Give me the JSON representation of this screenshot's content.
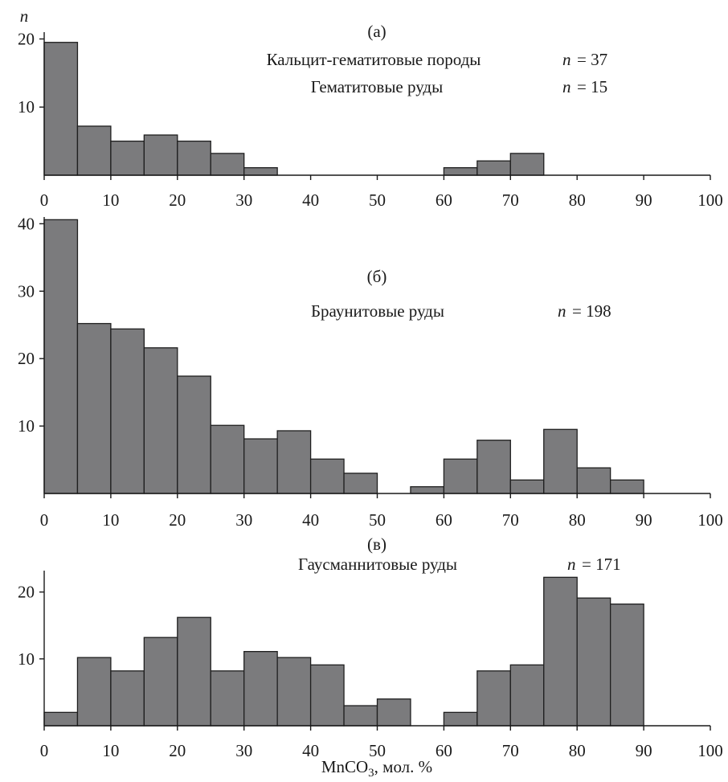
{
  "chart_data": [
    {
      "type": "bar",
      "panel_label": "(a)",
      "ylabel": "n",
      "bin_edges": [
        0,
        5,
        10,
        15,
        20,
        25,
        30,
        35,
        40,
        45,
        50,
        55,
        60,
        65,
        70,
        75,
        80,
        85,
        90,
        95,
        100
      ],
      "values": [
        19.5,
        7.2,
        5,
        5.9,
        5,
        3.2,
        1.1,
        0,
        0,
        0,
        0,
        0,
        1.1,
        2.1,
        3.2,
        0,
        0,
        0,
        0,
        0
      ],
      "xlim": [
        0,
        100
      ],
      "ylim": [
        0,
        21
      ],
      "x_ticks": [
        "0",
        "10",
        "20",
        "30",
        "40",
        "50",
        "60",
        "70",
        "80",
        "90",
        "100"
      ],
      "y_ticks": [
        "10",
        "20"
      ],
      "legend": [
        {
          "name": "Кальцит-гематитовые породы",
          "n_label": "n",
          "n_value": "= 37"
        },
        {
          "name": "Гематитовые руды",
          "n_label": "n",
          "n_value": "= 15"
        }
      ]
    },
    {
      "type": "bar",
      "panel_label": "(б)",
      "bin_edges": [
        0,
        5,
        10,
        15,
        20,
        25,
        30,
        35,
        40,
        45,
        50,
        55,
        60,
        65,
        70,
        75,
        80,
        85,
        90,
        95,
        100
      ],
      "values": [
        40.6,
        25.2,
        24.4,
        21.6,
        17.4,
        10.1,
        8.1,
        9.3,
        5.1,
        3,
        0,
        1,
        5.1,
        7.9,
        2,
        9.5,
        3.8,
        2,
        0,
        0
      ],
      "xlim": [
        0,
        100
      ],
      "ylim": [
        0,
        41
      ],
      "x_ticks": [
        "0",
        "10",
        "20",
        "30",
        "40",
        "50",
        "60",
        "70",
        "80",
        "90",
        "100"
      ],
      "y_ticks": [
        "10",
        "20",
        "30",
        "40"
      ],
      "legend": [
        {
          "name": "Браунитовые руды",
          "n_label": "n",
          "n_value": "= 198"
        }
      ]
    },
    {
      "type": "bar",
      "panel_label": "(в)",
      "xlabel": "MnCO",
      "xlabel_sub": "3",
      "xlabel_tail": ", мол. %",
      "bin_edges": [
        0,
        5,
        10,
        15,
        20,
        25,
        30,
        35,
        40,
        45,
        50,
        55,
        60,
        65,
        70,
        75,
        80,
        85,
        90,
        95,
        100
      ],
      "values": [
        2,
        10.2,
        8.2,
        13.2,
        16.2,
        8.2,
        11.1,
        10.2,
        9.1,
        3,
        4,
        0,
        2,
        8.2,
        9.1,
        22.2,
        19.1,
        18.2,
        0,
        0
      ],
      "xlim": [
        0,
        100
      ],
      "ylim": [
        0,
        23.2
      ],
      "x_ticks": [
        "0",
        "10",
        "20",
        "30",
        "40",
        "50",
        "60",
        "70",
        "80",
        "90",
        "100"
      ],
      "y_ticks": [
        "10",
        "20"
      ],
      "legend": [
        {
          "name": "Гаусманнитовые руды",
          "n_label": "n",
          "n_value": "= 171"
        }
      ]
    }
  ]
}
